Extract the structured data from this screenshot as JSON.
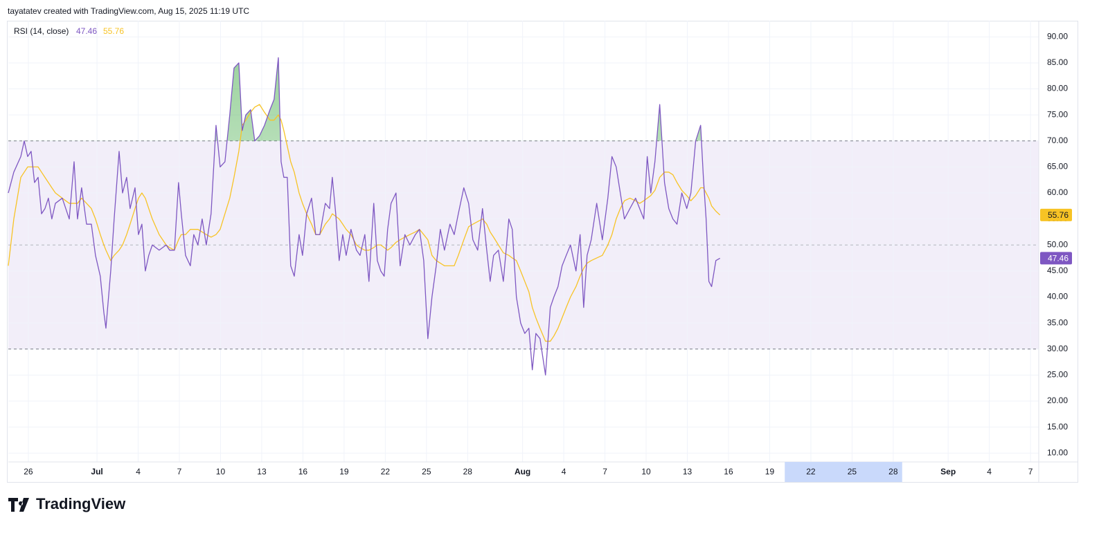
{
  "header": "tayatatev created with TradingView.com, Aug 15, 2025 11:19 UTC",
  "footer": "TradingView",
  "chart_data": {
    "type": "line",
    "title": "RSI (14, close)",
    "x": [
      -1.46,
      -1.06,
      -0.55,
      -0.3,
      -0.05,
      0.2,
      0.45,
      0.71,
      0.96,
      1.21,
      1.46,
      1.71,
      1.97,
      2.47,
      2.98,
      3.33,
      3.58,
      3.88,
      4.24,
      4.59,
      4.89,
      5.24,
      5.5,
      5.65,
      6.0,
      6.25,
      6.61,
      6.86,
      7.16,
      7.41,
      7.77,
      8.02,
      8.27,
      8.52,
      8.77,
      9.03,
      9.53,
      10.04,
      10.29,
      10.64,
      10.94,
      11.14,
      11.45,
      11.8,
      12.05,
      12.35,
      12.66,
      12.96,
      13.31,
      13.67,
      13.97,
      14.32,
      14.67,
      14.98,
      15.33,
      15.58,
      15.84,
      16.19,
      16.49,
      16.84,
      17.2,
      17.6,
      17.9,
      18.21,
      18.41,
      18.61,
      18.86,
      19.11,
      19.37,
      19.72,
      19.97,
      20.27,
      20.63,
      20.93,
      21.23,
      21.63,
      21.94,
      22.14,
      22.39,
      22.64,
      22.9,
      23.15,
      23.5,
      23.9,
      24.16,
      24.51,
      24.81,
      25.16,
      25.42,
      25.67,
      25.92,
      26.17,
      26.42,
      26.78,
      27.08,
      27.43,
      27.79,
      28.19,
      28.49,
      28.8,
      29.1,
      29.4,
      29.71,
      30.01,
      30.31,
      30.71,
      31.02,
      31.32,
      31.72,
      32.07,
      32.38,
      32.73,
      33.08,
      33.39,
      33.64,
      33.89,
      34.24,
      34.6,
      35.0,
      35.25,
      35.55,
      35.86,
      36.16,
      36.46,
      36.71,
      36.97,
      37.27,
      37.67,
      38.02,
      38.28,
      38.58,
      38.88,
      39.18,
      39.49,
      39.89,
      40.19,
      40.45,
      40.7,
      41.0,
      41.4,
      41.81,
      42.21,
      42.51,
      42.82,
      43.12,
      43.42,
      43.82,
      44.23,
      44.53,
      44.83,
      45.08,
      45.34,
      45.64,
      45.99,
      46.34,
      46.65,
      46.95,
      47.25,
      47.6,
      47.96,
      48.26,
      48.61,
      48.97,
      49.17,
      49.37,
      49.57,
      49.77,
      50.08,
      50.38
    ],
    "series": [
      {
        "color": "#7e57c2",
        "values": [
          60,
          64,
          67,
          70,
          67,
          68,
          62,
          63,
          56,
          57,
          59,
          55,
          58,
          59,
          55,
          66,
          55,
          61,
          54,
          54,
          48,
          44,
          37,
          34,
          45,
          55,
          68,
          60,
          63,
          57,
          61,
          52,
          54,
          45,
          48,
          50,
          49,
          50,
          49,
          49,
          62,
          56,
          48,
          46,
          52,
          50,
          55,
          50,
          56,
          73,
          65,
          66,
          75,
          84,
          85,
          72,
          75,
          76,
          70,
          71,
          73,
          76,
          78,
          86,
          66,
          63,
          63,
          46,
          44,
          52,
          48,
          56,
          59,
          52,
          52,
          58,
          57,
          63,
          56,
          47,
          52,
          48,
          53,
          49,
          48,
          52,
          43,
          58,
          47,
          45,
          44,
          53,
          58,
          60,
          46,
          52,
          50,
          52,
          53,
          47,
          32,
          40,
          46,
          53,
          49,
          54,
          52,
          56,
          61,
          58,
          51,
          49,
          57,
          49,
          43,
          48,
          49,
          43,
          55,
          53,
          40,
          35,
          33,
          34,
          26,
          33,
          32,
          25,
          38,
          40,
          42,
          46,
          48,
          50,
          45,
          52,
          38,
          48,
          51,
          58,
          51,
          59,
          67,
          65,
          60,
          55,
          57,
          59,
          57,
          55,
          67,
          60,
          66,
          77,
          62,
          57,
          55,
          54,
          60,
          57,
          60,
          70,
          73,
          63,
          55,
          43,
          42,
          47,
          47.46
        ]
      },
      {
        "color": "#f7c325",
        "values": [
          46,
          55,
          63,
          64,
          65,
          65,
          65,
          65,
          64,
          63,
          62,
          61,
          60,
          59,
          58,
          58,
          58,
          59,
          58,
          57,
          55,
          52,
          50,
          49,
          47,
          48,
          49,
          50,
          52,
          54,
          57,
          59,
          60,
          59,
          57,
          55,
          52,
          50,
          49.5,
          49,
          51,
          52,
          52,
          53,
          53,
          53,
          52.5,
          52,
          51.5,
          52,
          53,
          56,
          59,
          63,
          68,
          73,
          74,
          75.5,
          76.5,
          77,
          75.5,
          74,
          74,
          75,
          74,
          72,
          69,
          66,
          64,
          60,
          58,
          56,
          54,
          52,
          52,
          54,
          55,
          56,
          55.5,
          55,
          54,
          53,
          52,
          50,
          49.5,
          49,
          49,
          49.5,
          50,
          50,
          49.5,
          49,
          49.5,
          50.5,
          51,
          51.5,
          52,
          52.5,
          53,
          52,
          51,
          48,
          47,
          46.5,
          46,
          46,
          46,
          48,
          51,
          53.5,
          54,
          54.5,
          55,
          54,
          52.5,
          51.5,
          50,
          48.5,
          48,
          47.5,
          47,
          45,
          43,
          41,
          38,
          36,
          34,
          31.5,
          31.5,
          32.5,
          34,
          36,
          38,
          40,
          42,
          44,
          45.5,
          46.5,
          47,
          47.5,
          48,
          50,
          52,
          55,
          57,
          58.5,
          59,
          58.5,
          58,
          58.5,
          59,
          59.5,
          60.5,
          63,
          64,
          64,
          63.5,
          62,
          60.5,
          59.5,
          58.5,
          59.5,
          61,
          61,
          60,
          59,
          57.5,
          56.5,
          55.76
        ]
      }
    ],
    "xlim": [
      -1.46,
      73.6
    ],
    "xticks": [
      {
        "value": 0,
        "label": "26"
      },
      {
        "value": 5,
        "label": "Jul"
      },
      {
        "value": 8,
        "label": "4"
      },
      {
        "value": 11,
        "label": "7"
      },
      {
        "value": 14,
        "label": "10"
      },
      {
        "value": 17,
        "label": "13"
      },
      {
        "value": 20,
        "label": "16"
      },
      {
        "value": 23,
        "label": "19"
      },
      {
        "value": 26,
        "label": "22"
      },
      {
        "value": 29,
        "label": "25"
      },
      {
        "value": 32,
        "label": "28"
      },
      {
        "value": 36,
        "label": "Aug"
      },
      {
        "value": 39,
        "label": "4"
      },
      {
        "value": 42,
        "label": "7"
      },
      {
        "value": 45,
        "label": "10"
      },
      {
        "value": 48,
        "label": "13"
      },
      {
        "value": 51,
        "label": "16"
      },
      {
        "value": 54,
        "label": "19"
      },
      {
        "value": 57,
        "label": "22"
      },
      {
        "value": 60,
        "label": "25"
      },
      {
        "value": 63,
        "label": "28"
      },
      {
        "value": 67,
        "label": "Sep"
      },
      {
        "value": 70,
        "label": "4"
      },
      {
        "value": 73,
        "label": "7"
      }
    ],
    "ylim": [
      8.3,
      93.1
    ],
    "yticks": [
      {
        "value": 10,
        "label": "10.00"
      },
      {
        "value": 15,
        "label": "15.00"
      },
      {
        "value": 20,
        "label": "20.00"
      },
      {
        "value": 25,
        "label": "25.00"
      },
      {
        "value": 30,
        "label": "30.00"
      },
      {
        "value": 35,
        "label": "35.00"
      },
      {
        "value": 40,
        "label": "40.00"
      },
      {
        "value": 45,
        "label": "45.00"
      },
      {
        "value": 50,
        "label": "50.00"
      },
      {
        "value": 55,
        "label": "55.00"
      },
      {
        "value": 60,
        "label": "60.00"
      },
      {
        "value": 65,
        "label": "65.00"
      },
      {
        "value": 70,
        "label": "70.00"
      },
      {
        "value": 75,
        "label": "75.00"
      },
      {
        "value": 80,
        "label": "80.00"
      },
      {
        "value": 85,
        "label": "85.00"
      },
      {
        "value": 90,
        "label": "90.00"
      }
    ],
    "bands": [
      70,
      50,
      30
    ],
    "x_highlight": [
      55.1,
      63.65
    ],
    "grid": true
  }
}
